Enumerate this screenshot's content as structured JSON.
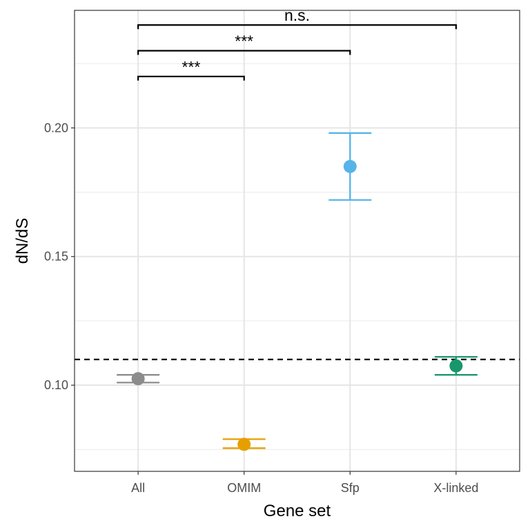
{
  "chart_data": {
    "type": "scatter",
    "xlabel": "Gene set",
    "ylabel": "dN/dS",
    "categories": [
      "All",
      "OMIM",
      "Sfp",
      "X-linked"
    ],
    "points": [
      {
        "category": "All",
        "y": 0.1025,
        "ymin": 0.101,
        "ymax": 0.104,
        "color": "#8c8c8c"
      },
      {
        "category": "OMIM",
        "y": 0.077,
        "ymin": 0.0755,
        "ymax": 0.079,
        "color": "#e69f00"
      },
      {
        "category": "Sfp",
        "y": 0.185,
        "ymin": 0.172,
        "ymax": 0.198,
        "color": "#56b4e9"
      },
      {
        "category": "X-linked",
        "y": 0.1075,
        "ymin": 0.104,
        "ymax": 0.111,
        "color": "#17976b"
      }
    ],
    "reference_line": {
      "y": 0.11,
      "style": "dashed"
    },
    "comparisons": [
      {
        "from": "All",
        "to": "OMIM",
        "y": 0.22,
        "label": "***"
      },
      {
        "from": "All",
        "to": "Sfp",
        "y": 0.23,
        "label": "***"
      },
      {
        "from": "All",
        "to": "X-linked",
        "y": 0.24,
        "label": "n.s."
      }
    ],
    "ylim": [
      0.0665,
      0.2457
    ],
    "yticks": [
      0.1,
      0.15,
      0.2
    ],
    "ytick_labels": [
      "0.10",
      "0.15",
      "0.20"
    ],
    "grid": true,
    "legend": "none"
  }
}
